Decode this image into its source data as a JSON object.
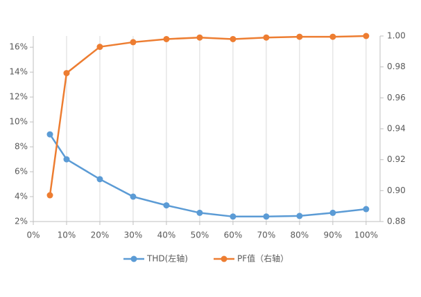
{
  "chart_data": {
    "type": "line",
    "x": [
      5,
      10,
      20,
      30,
      40,
      50,
      60,
      70,
      80,
      90,
      100
    ],
    "xlim": [
      0,
      104.2
    ],
    "xticks": [
      {
        "value": 0,
        "label": "0%"
      },
      {
        "value": 10,
        "label": "10%"
      },
      {
        "value": 20,
        "label": "20%"
      },
      {
        "value": 30,
        "label": "30%"
      },
      {
        "value": 40,
        "label": "40%"
      },
      {
        "value": 50,
        "label": "50%"
      },
      {
        "value": 60,
        "label": "60%"
      },
      {
        "value": 70,
        "label": "70%"
      },
      {
        "value": 80,
        "label": "80%"
      },
      {
        "value": 90,
        "label": "90%"
      },
      {
        "value": 100,
        "label": "100%"
      }
    ],
    "ylim": [
      2,
      16.9
    ],
    "yticks": [
      {
        "value": 2,
        "label": "2%"
      },
      {
        "value": 4,
        "label": "4%"
      },
      {
        "value": 6,
        "label": "6%"
      },
      {
        "value": 8,
        "label": "8%"
      },
      {
        "value": 10,
        "label": "10%"
      },
      {
        "value": 12,
        "label": "12%"
      },
      {
        "value": 14,
        "label": "14%"
      },
      {
        "value": 16,
        "label": "16%"
      }
    ],
    "y2lim": [
      0.88,
      1.0
    ],
    "y2ticks": [
      0.88,
      {
        "value": 0.9,
        "label": "0.90"
      },
      0.92,
      0.94,
      0.96,
      0.98,
      {
        "value": 1.0,
        "label": "1.00"
      }
    ],
    "grid": "x",
    "legend": "bottom",
    "series": [
      {
        "name": "THD(左轴)",
        "color": "#5b9bd5",
        "values": [
          9.0,
          7.0,
          5.4,
          4.0,
          3.3,
          2.7,
          2.4,
          2.4,
          2.45,
          2.7,
          3.0
        ]
      },
      {
        "name": "PF值（右轴）",
        "color": "#ed7d31",
        "axis": "y2",
        "values": [
          0.897,
          0.976,
          0.993,
          0.996,
          0.998,
          0.999,
          0.998,
          0.999,
          0.9995,
          0.9995,
          1.0
        ]
      }
    ]
  }
}
